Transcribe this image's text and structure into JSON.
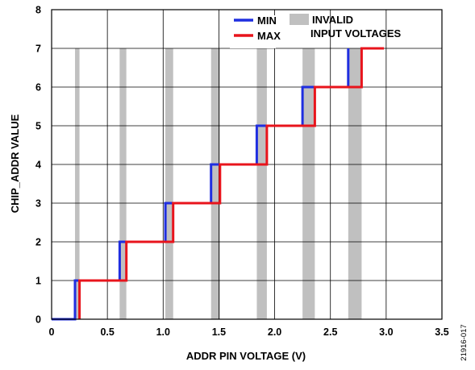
{
  "chart_data": {
    "type": "line",
    "title": "",
    "xlabel": "ADDR PIN VOLTAGE (V)",
    "ylabel": "CHIP_ADDR VALUE",
    "xlim": [
      0,
      3.5
    ],
    "ylim": [
      0,
      8
    ],
    "x_ticks": [
      "0",
      "0.5",
      "1.0",
      "1.5",
      "2.0",
      "2.5",
      "3.0",
      "3.5"
    ],
    "y_ticks": [
      "0",
      "1",
      "2",
      "3",
      "4",
      "5",
      "6",
      "7",
      "8"
    ],
    "grid": true,
    "legend_position": "top-right",
    "series": [
      {
        "name": "MIN",
        "color": "#1f2ee0",
        "x": [
          0,
          0.21,
          0.21,
          0.61,
          0.61,
          1.02,
          1.02,
          1.43,
          1.43,
          1.84,
          1.84,
          2.25,
          2.25,
          2.66,
          2.66
        ],
        "y": [
          0,
          0,
          1,
          1,
          2,
          2,
          3,
          3,
          4,
          4,
          5,
          5,
          6,
          6,
          7
        ]
      },
      {
        "name": "MAX",
        "color": "#e8141c",
        "x": [
          0.25,
          0.25,
          0.67,
          0.67,
          1.09,
          1.09,
          1.51,
          1.51,
          1.93,
          1.93,
          2.36,
          2.36,
          2.78,
          2.78,
          2.98
        ],
        "y": [
          0,
          1,
          1,
          2,
          2,
          3,
          3,
          4,
          4,
          5,
          5,
          6,
          6,
          7,
          7
        ]
      }
    ],
    "invalid_bands": {
      "name": "INVALID INPUT VOLTAGES",
      "color": "#c0c0c0",
      "ranges": [
        [
          0.21,
          0.25
        ],
        [
          0.61,
          0.67
        ],
        [
          1.02,
          1.09
        ],
        [
          1.43,
          1.51
        ],
        [
          1.84,
          1.93
        ],
        [
          2.25,
          2.36
        ],
        [
          2.66,
          2.78
        ]
      ]
    },
    "legend": {
      "min_label": "MIN",
      "max_label": "MAX",
      "invalid_label_line1": "INVALID",
      "invalid_label_line2": "INPUT VOLTAGES"
    },
    "figure_id": "21916-017"
  }
}
